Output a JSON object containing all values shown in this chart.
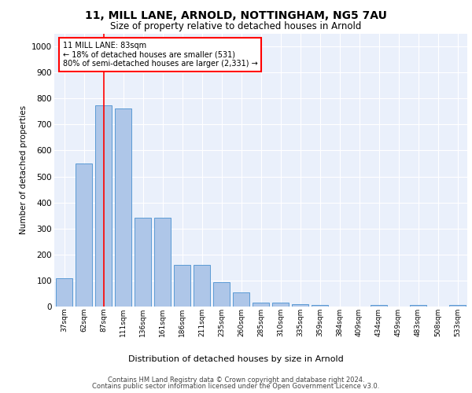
{
  "title_line1": "11, MILL LANE, ARNOLD, NOTTINGHAM, NG5 7AU",
  "title_line2": "Size of property relative to detached houses in Arnold",
  "xlabel": "Distribution of detached houses by size in Arnold",
  "ylabel": "Number of detached properties",
  "categories": [
    "37sqm",
    "62sqm",
    "87sqm",
    "111sqm",
    "136sqm",
    "161sqm",
    "186sqm",
    "211sqm",
    "235sqm",
    "260sqm",
    "285sqm",
    "310sqm",
    "335sqm",
    "359sqm",
    "384sqm",
    "409sqm",
    "434sqm",
    "459sqm",
    "483sqm",
    "508sqm",
    "533sqm"
  ],
  "values": [
    110,
    550,
    775,
    760,
    340,
    340,
    160,
    160,
    95,
    55,
    15,
    15,
    10,
    5,
    0,
    0,
    5,
    0,
    5,
    0,
    5
  ],
  "bar_color": "#aec6e8",
  "bar_edge_color": "#5b9bd5",
  "redline_index": 2,
  "annotation_text": "11 MILL LANE: 83sqm\n← 18% of detached houses are smaller (531)\n80% of semi-detached houses are larger (2,331) →",
  "ylim": [
    0,
    1050
  ],
  "yticks": [
    0,
    100,
    200,
    300,
    400,
    500,
    600,
    700,
    800,
    900,
    1000
  ],
  "background_color": "#eaf0fb",
  "grid_color": "#ffffff",
  "footer_line1": "Contains HM Land Registry data © Crown copyright and database right 2024.",
  "footer_line2": "Contains public sector information licensed under the Open Government Licence v3.0."
}
